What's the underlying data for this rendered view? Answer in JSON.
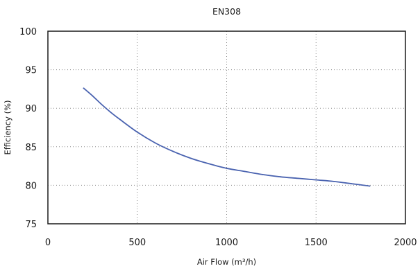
{
  "chart_data": {
    "type": "line",
    "title": "EN308",
    "xlabel": "Air Flow (m³/h)",
    "ylabel": "Efficiency (%)",
    "xlim": [
      0,
      2000
    ],
    "ylim": [
      75,
      100
    ],
    "xticks": [
      0,
      500,
      1000,
      1500,
      2000
    ],
    "yticks": [
      75,
      80,
      85,
      90,
      95,
      100
    ],
    "grid": true,
    "series": [
      {
        "color": "#4a63b0",
        "x": [
          200,
          250,
          300,
          350,
          400,
          500,
          600,
          700,
          800,
          900,
          1000,
          1100,
          1200,
          1300,
          1400,
          1500,
          1600,
          1700,
          1800
        ],
        "y": [
          92.6,
          91.6,
          90.5,
          89.5,
          88.6,
          86.9,
          85.5,
          84.4,
          83.5,
          82.8,
          82.2,
          81.8,
          81.4,
          81.1,
          80.9,
          80.7,
          80.5,
          80.2,
          79.9
        ]
      }
    ]
  }
}
